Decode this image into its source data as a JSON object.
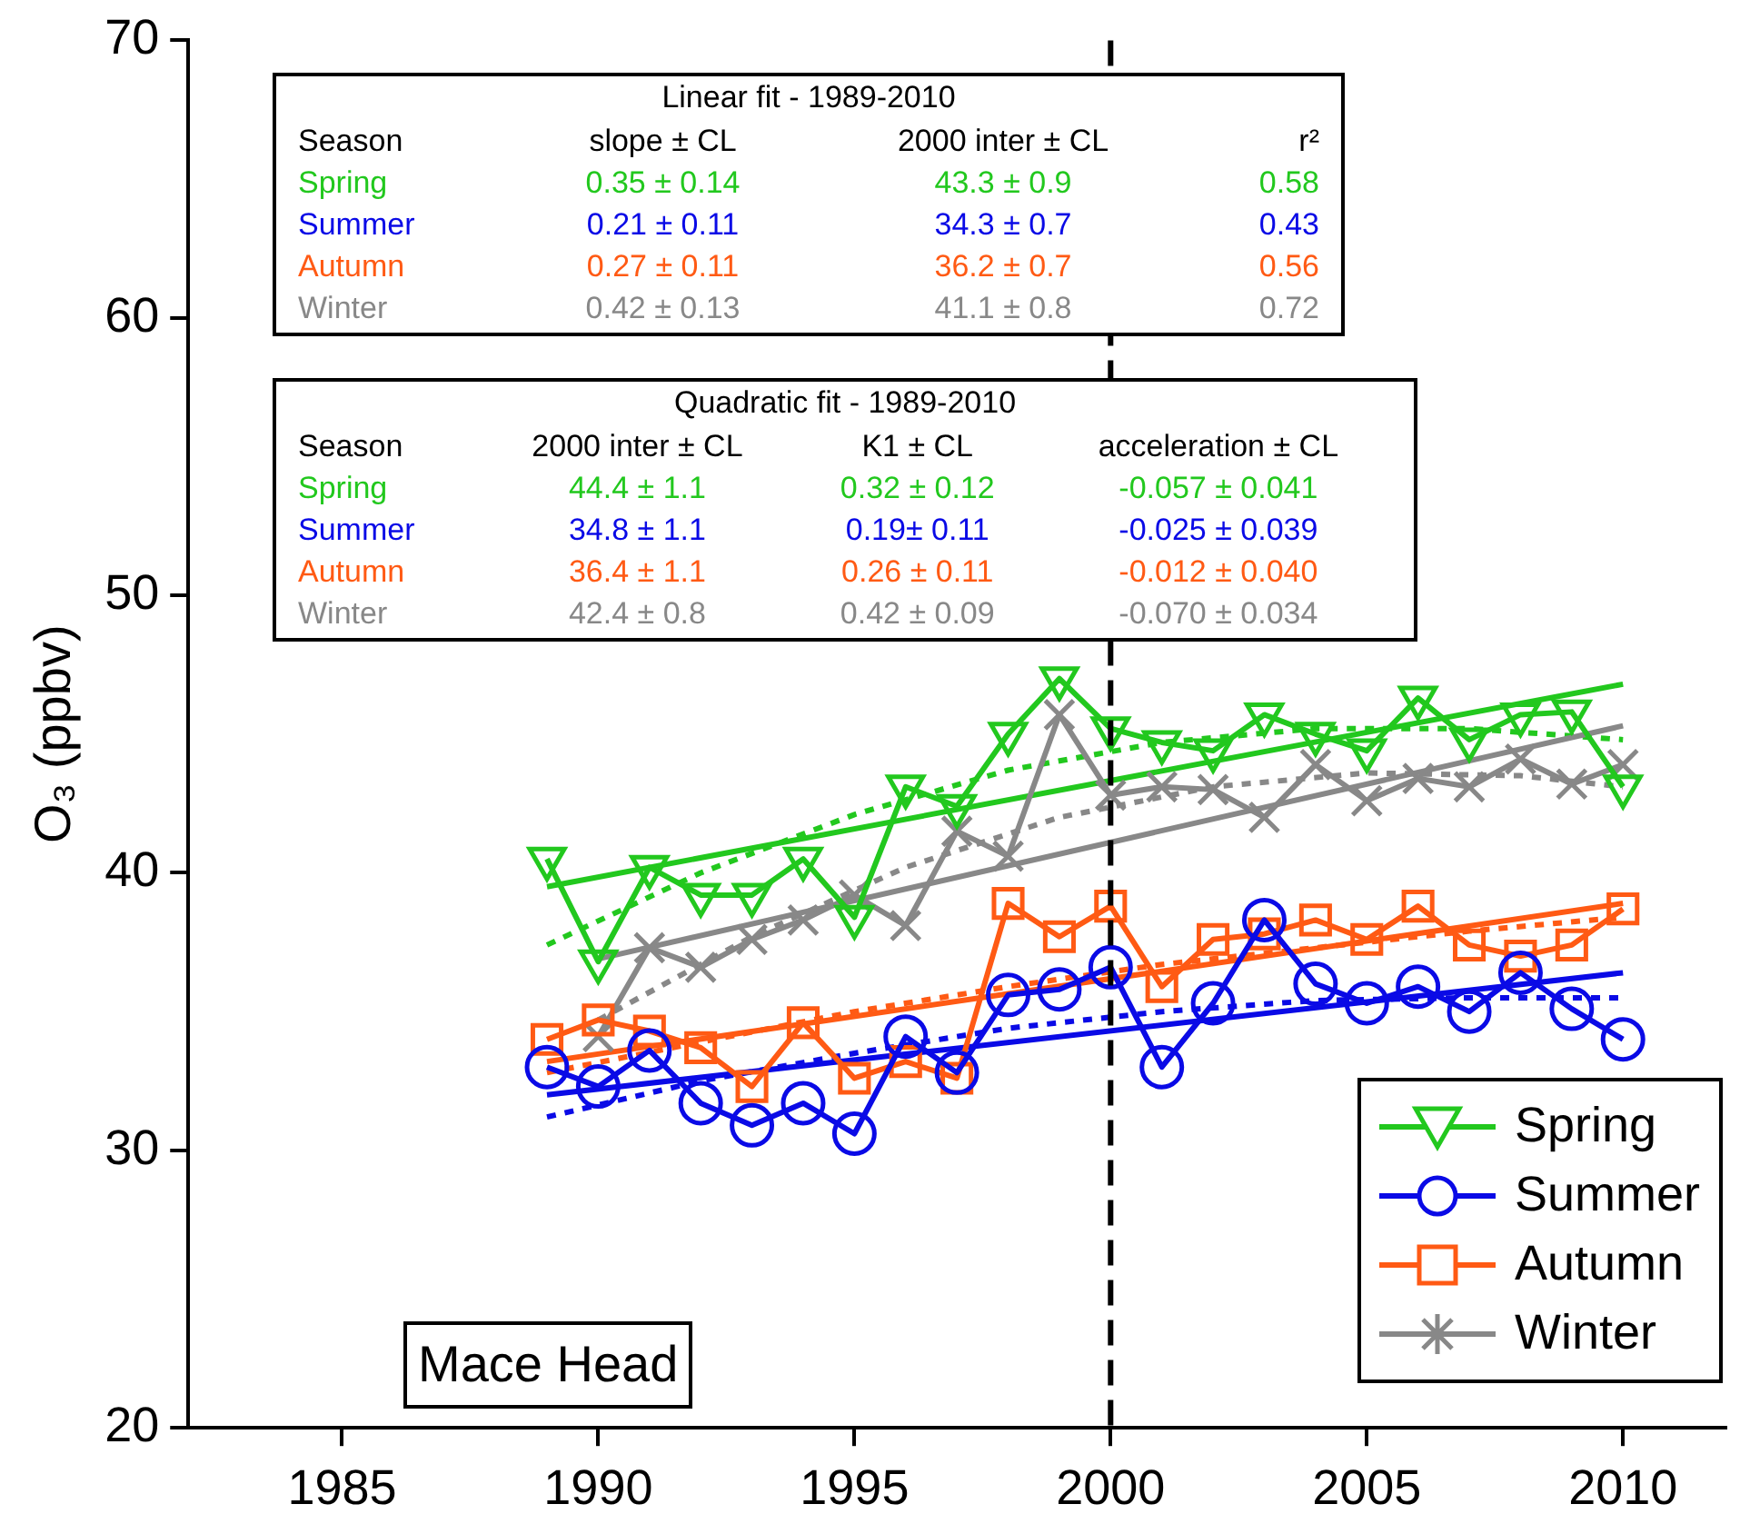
{
  "chart_data": {
    "type": "line",
    "ylabel": "O₃ (ppbv)",
    "x": [
      1989,
      1990,
      1991,
      1992,
      1993,
      1994,
      1995,
      1996,
      1997,
      1998,
      1999,
      2000,
      2001,
      2002,
      2003,
      2004,
      2005,
      2006,
      2007,
      2008,
      2009,
      2010
    ],
    "series": [
      {
        "name": "Spring",
        "color": "#22c81e",
        "marker": "triangle",
        "values": [
          40.5,
          36.8,
          40.2,
          39.2,
          39.2,
          40.5,
          38.4,
          43.1,
          42.4,
          45.0,
          47.0,
          45.2,
          44.7,
          44.4,
          45.7,
          45.0,
          44.4,
          46.3,
          44.8,
          45.7,
          45.8,
          43.1
        ]
      },
      {
        "name": "Summer",
        "color": "#0a0ae6",
        "marker": "circle",
        "values": [
          33.0,
          32.3,
          33.6,
          31.7,
          30.9,
          31.7,
          30.6,
          34.1,
          32.8,
          35.6,
          35.8,
          36.6,
          33.0,
          35.3,
          38.3,
          36.0,
          35.3,
          35.9,
          35.0,
          36.4,
          35.1,
          34.0
        ]
      },
      {
        "name": "Autumn",
        "color": "#ff5a14",
        "marker": "square",
        "values": [
          34.0,
          34.7,
          34.3,
          33.7,
          32.3,
          34.6,
          32.6,
          33.2,
          32.6,
          38.9,
          37.7,
          38.8,
          35.9,
          37.6,
          37.8,
          38.3,
          37.6,
          38.8,
          37.4,
          37.0,
          37.4,
          38.7
        ]
      },
      {
        "name": "Winter",
        "color": "#888888",
        "marker": "cross",
        "values": [
          null,
          34.1,
          37.3,
          36.6,
          37.6,
          38.3,
          39.2,
          38.1,
          41.5,
          40.6,
          45.7,
          42.8,
          43.1,
          43.0,
          42.0,
          43.9,
          42.6,
          43.4,
          43.1,
          44.1,
          43.2,
          43.9
        ]
      },
      {
        "type": "line",
        "color": "#22c81e",
        "marker": "none",
        "x": [
          1989,
          2010
        ],
        "values": [
          39.5,
          46.8
        ]
      },
      {
        "type": "line",
        "color": "#0a0ae6",
        "marker": "none",
        "x": [
          1989,
          2010
        ],
        "values": [
          32.0,
          36.4
        ]
      },
      {
        "type": "line",
        "color": "#ff5a14",
        "marker": "none",
        "x": [
          1989,
          2010
        ],
        "values": [
          33.2,
          38.9
        ]
      },
      {
        "type": "line",
        "color": "#888888",
        "marker": "none",
        "x": [
          1990,
          2010
        ],
        "values": [
          36.9,
          45.3
        ]
      },
      {
        "type": "line",
        "color": "#22c81e",
        "marker": "none",
        "line_style": "dotted",
        "x": [
          1989,
          1992,
          1995,
          1998,
          2001,
          2004,
          2007,
          2010
        ],
        "values": [
          37.4,
          40.0,
          42.1,
          43.7,
          44.7,
          45.2,
          45.2,
          44.8
        ]
      },
      {
        "type": "line",
        "color": "#0a0ae6",
        "marker": "none",
        "line_style": "dotted",
        "x": [
          1989,
          1992,
          1995,
          1998,
          2001,
          2004,
          2007,
          2010
        ],
        "values": [
          31.2,
          32.5,
          33.5,
          34.4,
          35.0,
          35.4,
          35.5,
          35.5
        ]
      },
      {
        "type": "line",
        "color": "#ff5a14",
        "marker": "none",
        "line_style": "dotted",
        "x": [
          1989,
          1992,
          1995,
          1998,
          2001,
          2004,
          2007,
          2010
        ],
        "values": [
          32.8,
          33.9,
          35.0,
          35.9,
          36.7,
          37.3,
          37.9,
          38.4
        ]
      },
      {
        "type": "line",
        "color": "#888888",
        "marker": "none",
        "line_style": "dotted",
        "x": [
          1990,
          1993,
          1996,
          1999,
          2002,
          2005,
          2008,
          2010
        ],
        "values": [
          34.7,
          37.7,
          40.2,
          42.0,
          43.1,
          43.6,
          43.5,
          43.1
        ]
      }
    ],
    "xlim": [
      1982,
      2012
    ],
    "xticks": [
      1985,
      1990,
      1995,
      2000,
      2005,
      2010
    ],
    "ylim": [
      20,
      70
    ],
    "yticks": [
      20,
      30,
      40,
      50,
      60,
      70
    ],
    "grid": false,
    "legend": "bottom right",
    "ref_lines": [
      {
        "axis": "x",
        "value": 2000,
        "color": "#000000",
        "line_style": "dashed"
      }
    ],
    "annotations": [
      "Linear fit - 1989-2010",
      "Season\tslope ± CL\t2000 inter ± CL\tr²",
      "Spring\t0.35 ± 0.14\t43.3 ± 0.9\t0.58",
      "Summer\t0.21 ± 0.11\t34.3 ± 0.7\t0.43",
      "Autumn\t0.27 ± 0.11\t36.2 ± 0.7\t0.56",
      "Winter\t0.42 ± 0.13\t41.1 ± 0.8\t0.72",
      "Quadratic fit - 1989-2010",
      "Season\t2000 inter ± CL\tK1 ± CL\tacceleration ± CL",
      "Spring\t44.4 ± 1.1\t0.32 ± 0.12\t-0.057 ± 0.041",
      "Summer\t34.8 ± 1.1\t0.19± 0.11\t-0.025 ± 0.039",
      "Autumn\t36.4 ± 1.1\t0.26 ± 0.11\t-0.012 ± 0.040",
      "Winter\t42.4 ± 0.8\t0.42 ± 0.09\t-0.070 ± 0.034",
      "Mace Head"
    ]
  }
}
